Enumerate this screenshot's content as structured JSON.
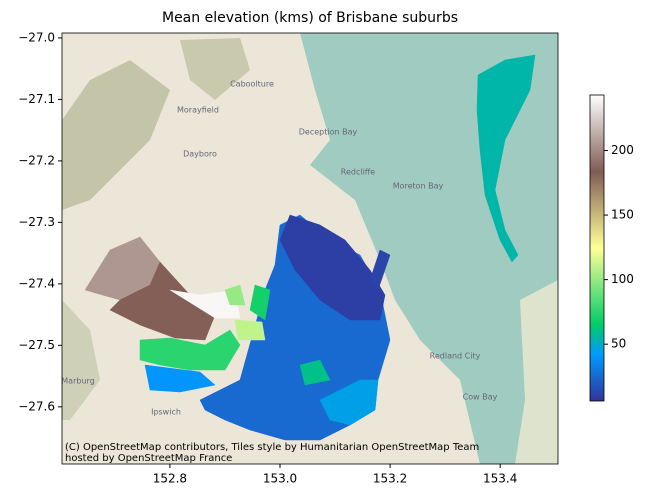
{
  "chart_data": {
    "type": "choropleth",
    "title": "Mean elevation (kms) of Brisbane suburbs",
    "xlim": [
      152.604,
      153.505
    ],
    "ylim": [
      -27.693,
      -26.992
    ],
    "xticks": [
      152.8,
      {
        "value": 153.0,
        "label": "153.0"
      },
      153.2,
      153.4
    ],
    "yticks": [
      {
        "value": -27.0,
        "label": "−27.0"
      },
      {
        "value": -27.1,
        "label": "−27.1"
      },
      {
        "value": -27.2,
        "label": "−27.2"
      },
      {
        "value": -27.3,
        "label": "−27.3"
      },
      {
        "value": -27.4,
        "label": "−27.4"
      },
      {
        "value": -27.5,
        "label": "−27.5"
      },
      {
        "value": -27.6,
        "label": "−27.6"
      }
    ],
    "colormap": "terrain",
    "clim": [
      6,
      243
    ],
    "cticks": [
      50,
      100,
      150,
      200
    ],
    "values": [
      205,
      185,
      240,
      75,
      40,
      25,
      10,
      12,
      70,
      110,
      100,
      45,
      55,
      60
    ],
    "map_labels": [
      "Caboolture",
      "Morayfield",
      "Deception Bay",
      "Dayboro",
      "Redcliffe",
      "Moreton Bay",
      "Redland City",
      "Ipswich",
      "Marburg",
      "Cow Bay"
    ],
    "attribution": [
      "(C) OpenStreetMap contributors, Tiles style by Humanitarian OpenStreetMap Team",
      "hosted by OpenStreetMap France"
    ]
  }
}
